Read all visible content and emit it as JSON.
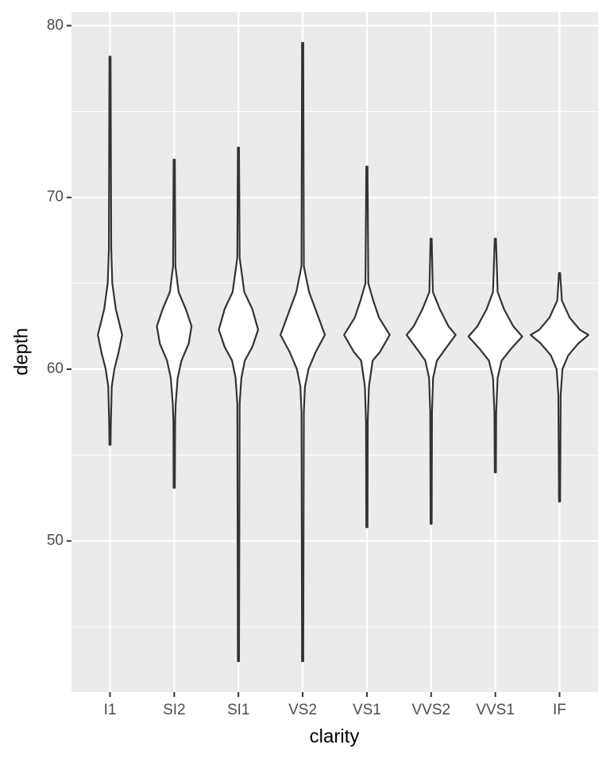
{
  "chart_data": {
    "type": "violin",
    "x_label": "clarity",
    "y_label": "depth",
    "categories": [
      "I1",
      "SI2",
      "SI1",
      "VS2",
      "VS1",
      "VVS2",
      "VVS1",
      "IF"
    ],
    "ylim": [
      41.2,
      80.8
    ],
    "yticks": [
      50,
      60,
      70,
      80
    ],
    "minor_yticks": [
      45,
      55,
      65,
      75
    ],
    "grid": true,
    "fill": "#ffffff",
    "stroke": "#333333",
    "background": "#ebebeb",
    "profiles": [
      [
        [
          78.2,
          0.02
        ],
        [
          67,
          0.04
        ],
        [
          65,
          0.08
        ],
        [
          63.5,
          0.2
        ],
        [
          62,
          0.42
        ],
        [
          61,
          0.3
        ],
        [
          60,
          0.15
        ],
        [
          59,
          0.06
        ],
        [
          57,
          0.03
        ],
        [
          55.6,
          0.02
        ]
      ],
      [
        [
          72.2,
          0.02
        ],
        [
          66,
          0.04
        ],
        [
          64.5,
          0.15
        ],
        [
          63.5,
          0.4
        ],
        [
          62.5,
          0.6
        ],
        [
          61.5,
          0.5
        ],
        [
          60.5,
          0.25
        ],
        [
          59.5,
          0.12
        ],
        [
          58,
          0.05
        ],
        [
          57,
          0.03
        ],
        [
          53.1,
          0.02
        ]
      ],
      [
        [
          72.9,
          0.02
        ],
        [
          66.5,
          0.04
        ],
        [
          64.5,
          0.2
        ],
        [
          63.5,
          0.48
        ],
        [
          62.3,
          0.68
        ],
        [
          61.3,
          0.48
        ],
        [
          60.5,
          0.22
        ],
        [
          59.5,
          0.1
        ],
        [
          58,
          0.04
        ],
        [
          43,
          0.02
        ]
      ],
      [
        [
          79,
          0.02
        ],
        [
          66,
          0.04
        ],
        [
          64.5,
          0.22
        ],
        [
          63,
          0.55
        ],
        [
          62,
          0.77
        ],
        [
          61,
          0.45
        ],
        [
          60,
          0.2
        ],
        [
          59,
          0.08
        ],
        [
          57.5,
          0.04
        ],
        [
          43,
          0.02
        ]
      ],
      [
        [
          71.8,
          0.02
        ],
        [
          65,
          0.05
        ],
        [
          64,
          0.22
        ],
        [
          63,
          0.42
        ],
        [
          62,
          0.79
        ],
        [
          61,
          0.45
        ],
        [
          60.5,
          0.2
        ],
        [
          59,
          0.07
        ],
        [
          57,
          0.03
        ],
        [
          50.8,
          0.02
        ]
      ],
      [
        [
          67.6,
          0.02
        ],
        [
          64.5,
          0.06
        ],
        [
          63.5,
          0.3
        ],
        [
          62.5,
          0.6
        ],
        [
          62,
          0.85
        ],
        [
          61.2,
          0.5
        ],
        [
          60.5,
          0.2
        ],
        [
          59.5,
          0.07
        ],
        [
          57.5,
          0.03
        ],
        [
          51,
          0.02
        ]
      ],
      [
        [
          67.6,
          0.02
        ],
        [
          64.5,
          0.08
        ],
        [
          63.5,
          0.3
        ],
        [
          62.5,
          0.62
        ],
        [
          61.9,
          0.93
        ],
        [
          61.2,
          0.55
        ],
        [
          60.5,
          0.22
        ],
        [
          59.5,
          0.08
        ],
        [
          57.5,
          0.03
        ],
        [
          54,
          0.02
        ]
      ],
      [
        [
          65.6,
          0.02
        ],
        [
          64,
          0.08
        ],
        [
          63,
          0.35
        ],
        [
          62.3,
          0.7
        ],
        [
          62,
          1
        ],
        [
          61.5,
          0.65
        ],
        [
          60.8,
          0.3
        ],
        [
          60,
          0.1
        ],
        [
          58.5,
          0.04
        ],
        [
          52.3,
          0.02
        ]
      ]
    ]
  }
}
